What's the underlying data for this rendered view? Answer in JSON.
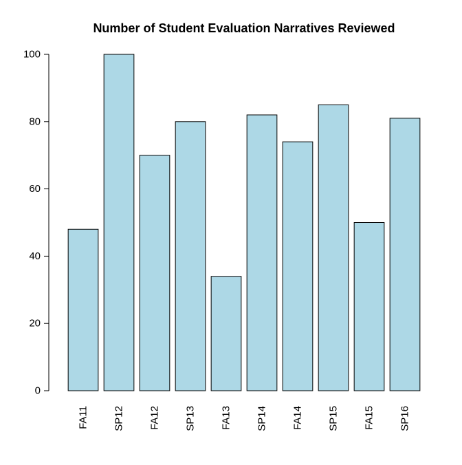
{
  "chart_data": {
    "type": "bar",
    "title": "Number of Student Evaluation Narratives Reviewed",
    "xlabel": "",
    "ylabel": "",
    "categories": [
      "FA11",
      "SP12",
      "FA12",
      "SP13",
      "FA13",
      "SP14",
      "FA14",
      "SP15",
      "FA15",
      "SP16"
    ],
    "values": [
      48,
      100,
      70,
      80,
      34,
      82,
      74,
      85,
      50,
      81
    ],
    "ylim": [
      0,
      100
    ],
    "yticks": [
      0,
      20,
      40,
      60,
      80,
      100
    ],
    "x_tick_orientation": "vertical",
    "grid": false,
    "legend": "none",
    "bar_color": "#ADD8E6",
    "bar_border_color": "#000000"
  }
}
